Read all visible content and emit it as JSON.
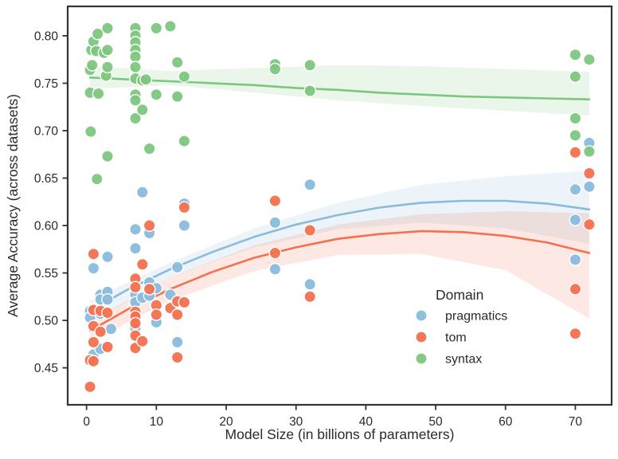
{
  "figure": {
    "background": "#ffffff",
    "axis_color": "#333333",
    "text_color": "#2b2b2b",
    "xlabel": "Model Size (in billions of parameters)",
    "ylabel": "Average Accuracy (across datasets)",
    "xlim": [
      -2.7,
      75.2
    ],
    "ylim": [
      0.411,
      0.831
    ],
    "x_ticks": [
      0,
      10,
      20,
      30,
      40,
      50,
      60,
      70
    ],
    "x_tick_labels": [
      "0",
      "10",
      "20",
      "30",
      "40",
      "50",
      "60",
      "70"
    ],
    "y_ticks": [
      0.45,
      0.5,
      0.55,
      0.6,
      0.65,
      0.7,
      0.75,
      0.8
    ],
    "y_tick_labels": [
      "0.45",
      "0.50",
      "0.55",
      "0.60",
      "0.65",
      "0.70",
      "0.75",
      "0.80"
    ]
  },
  "legend": {
    "title": "Domain",
    "items": [
      {
        "label": "pragmatics",
        "color": "#8abbdc"
      },
      {
        "label": "tom",
        "color": "#f3714f"
      },
      {
        "label": "syntax",
        "color": "#7dc67e"
      }
    ]
  },
  "chart_data": {
    "type": "scatter",
    "subtype": "scatter_with_quadratic_regression_and_ci",
    "xlabel": "Model Size (in billions of parameters)",
    "ylabel": "Average Accuracy (across datasets)",
    "legend_title": "Domain",
    "grid": false,
    "series": [
      {
        "name": "pragmatics",
        "color": "#8abbdc",
        "points": [
          [
            0.5,
            0.51
          ],
          [
            0.5,
            0.503
          ],
          [
            1,
            0.555
          ],
          [
            1,
            0.512
          ],
          [
            1,
            0.464
          ],
          [
            2,
            0.527
          ],
          [
            2,
            0.522
          ],
          [
            2,
            0.507
          ],
          [
            2,
            0.47
          ],
          [
            3,
            0.567
          ],
          [
            3,
            0.53
          ],
          [
            3,
            0.522
          ],
          [
            3.5,
            0.491
          ],
          [
            7,
            0.596
          ],
          [
            7,
            0.576
          ],
          [
            7,
            0.527
          ],
          [
            7,
            0.519
          ],
          [
            7,
            0.492
          ],
          [
            8,
            0.635
          ],
          [
            8,
            0.524
          ],
          [
            9,
            0.592
          ],
          [
            9,
            0.54
          ],
          [
            9,
            0.526
          ],
          [
            10,
            0.534
          ],
          [
            10,
            0.498
          ],
          [
            12,
            0.527
          ],
          [
            13,
            0.556
          ],
          [
            13,
            0.477
          ],
          [
            14,
            0.623
          ],
          [
            14,
            0.6
          ],
          [
            27,
            0.603
          ],
          [
            27,
            0.554
          ],
          [
            32,
            0.643
          ],
          [
            32,
            0.538
          ],
          [
            70,
            0.638
          ],
          [
            70,
            0.606
          ],
          [
            70,
            0.564
          ],
          [
            72,
            0.687
          ],
          [
            72,
            0.641
          ]
        ],
        "line_x": [
          0.5,
          6,
          12,
          18,
          24,
          30,
          36,
          42,
          48,
          54,
          60,
          66,
          72
        ],
        "line_y": [
          0.51,
          0.533,
          0.554,
          0.572,
          0.588,
          0.601,
          0.611,
          0.619,
          0.624,
          0.626,
          0.626,
          0.623,
          0.617
        ],
        "band_x": [
          0.5,
          12,
          24,
          36,
          48,
          60,
          72
        ],
        "band_upper": [
          0.521,
          0.561,
          0.597,
          0.624,
          0.643,
          0.652,
          0.658
        ],
        "band_lower": [
          0.497,
          0.546,
          0.577,
          0.596,
          0.603,
          0.597,
          0.581
        ]
      },
      {
        "name": "tom",
        "color": "#f3714f",
        "points": [
          [
            0.5,
            0.458
          ],
          [
            0.5,
            0.43
          ],
          [
            1,
            0.57
          ],
          [
            1,
            0.511
          ],
          [
            1,
            0.494
          ],
          [
            1,
            0.477
          ],
          [
            1,
            0.457
          ],
          [
            2,
            0.51
          ],
          [
            2,
            0.488
          ],
          [
            3,
            0.508
          ],
          [
            3,
            0.472
          ],
          [
            7,
            0.544
          ],
          [
            7,
            0.535
          ],
          [
            7,
            0.509
          ],
          [
            7,
            0.504
          ],
          [
            7,
            0.497
          ],
          [
            7,
            0.484
          ],
          [
            7,
            0.471
          ],
          [
            8,
            0.559
          ],
          [
            8,
            0.478
          ],
          [
            9,
            0.6
          ],
          [
            9,
            0.533
          ],
          [
            10,
            0.516
          ],
          [
            10,
            0.506
          ],
          [
            12,
            0.513
          ],
          [
            13,
            0.52
          ],
          [
            13,
            0.506
          ],
          [
            13,
            0.461
          ],
          [
            14,
            0.619
          ],
          [
            14,
            0.519
          ],
          [
            27,
            0.626
          ],
          [
            27,
            0.571
          ],
          [
            32,
            0.595
          ],
          [
            32,
            0.525
          ],
          [
            70,
            0.677
          ],
          [
            70,
            0.533
          ],
          [
            70,
            0.486
          ],
          [
            72,
            0.655
          ],
          [
            72,
            0.601
          ]
        ],
        "line_x": [
          0.5,
          6,
          12,
          18,
          24,
          30,
          36,
          42,
          48,
          54,
          60,
          66,
          72
        ],
        "line_y": [
          0.489,
          0.512,
          0.533,
          0.551,
          0.566,
          0.577,
          0.586,
          0.591,
          0.594,
          0.593,
          0.589,
          0.582,
          0.571
        ],
        "band_x": [
          0.5,
          12,
          24,
          36,
          48,
          60,
          72
        ],
        "band_upper": [
          0.499,
          0.546,
          0.579,
          0.601,
          0.612,
          0.615,
          0.613
        ],
        "band_lower": [
          0.477,
          0.521,
          0.552,
          0.569,
          0.57,
          0.553,
          0.502
        ]
      },
      {
        "name": "syntax",
        "color": "#7dc67e",
        "points": [
          [
            0.5,
            0.764
          ],
          [
            0.5,
            0.74
          ],
          [
            0.6,
            0.699
          ],
          [
            0.7,
            0.785
          ],
          [
            0.8,
            0.769
          ],
          [
            1,
            0.794
          ],
          [
            1.4,
            0.784
          ],
          [
            1.5,
            0.649
          ],
          [
            1.6,
            0.802
          ],
          [
            1.7,
            0.739
          ],
          [
            2.5,
            0.782
          ],
          [
            2.8,
            0.758
          ],
          [
            3,
            0.808
          ],
          [
            3,
            0.785
          ],
          [
            3,
            0.767
          ],
          [
            3,
            0.673
          ],
          [
            7,
            0.808
          ],
          [
            7,
            0.8
          ],
          [
            7,
            0.793
          ],
          [
            7,
            0.785
          ],
          [
            7,
            0.778
          ],
          [
            7,
            0.767
          ],
          [
            7,
            0.755
          ],
          [
            7,
            0.738
          ],
          [
            7,
            0.732
          ],
          [
            7,
            0.713
          ],
          [
            8,
            0.753
          ],
          [
            8,
            0.722
          ],
          [
            8.5,
            0.754
          ],
          [
            9,
            0.681
          ],
          [
            10,
            0.808
          ],
          [
            10,
            0.738
          ],
          [
            12,
            0.81
          ],
          [
            13,
            0.772
          ],
          [
            13,
            0.736
          ],
          [
            14,
            0.757
          ],
          [
            14,
            0.689
          ],
          [
            27,
            0.77
          ],
          [
            27,
            0.765
          ],
          [
            32,
            0.769
          ],
          [
            32,
            0.742
          ],
          [
            70,
            0.78
          ],
          [
            70,
            0.757
          ],
          [
            70,
            0.713
          ],
          [
            70,
            0.695
          ],
          [
            72,
            0.775
          ],
          [
            72,
            0.678
          ]
        ],
        "line_x": [
          0.5,
          6,
          12,
          18,
          24,
          30,
          36,
          42,
          48,
          54,
          60,
          66,
          72
        ],
        "line_y": [
          0.756,
          0.754,
          0.752,
          0.75,
          0.748,
          0.745,
          0.743,
          0.74,
          0.738,
          0.736,
          0.735,
          0.734,
          0.733
        ],
        "band_x": [
          0.5,
          12,
          24,
          36,
          48,
          60,
          72
        ],
        "band_upper": [
          0.768,
          0.763,
          0.766,
          0.769,
          0.768,
          0.765,
          0.762
        ],
        "band_lower": [
          0.744,
          0.748,
          0.74,
          0.732,
          0.726,
          0.721,
          0.716
        ]
      }
    ],
    "x_range_of_fit": [
      0.5,
      72
    ],
    "xlim": [
      -2.7,
      75.2
    ],
    "ylim": [
      0.411,
      0.831
    ]
  }
}
